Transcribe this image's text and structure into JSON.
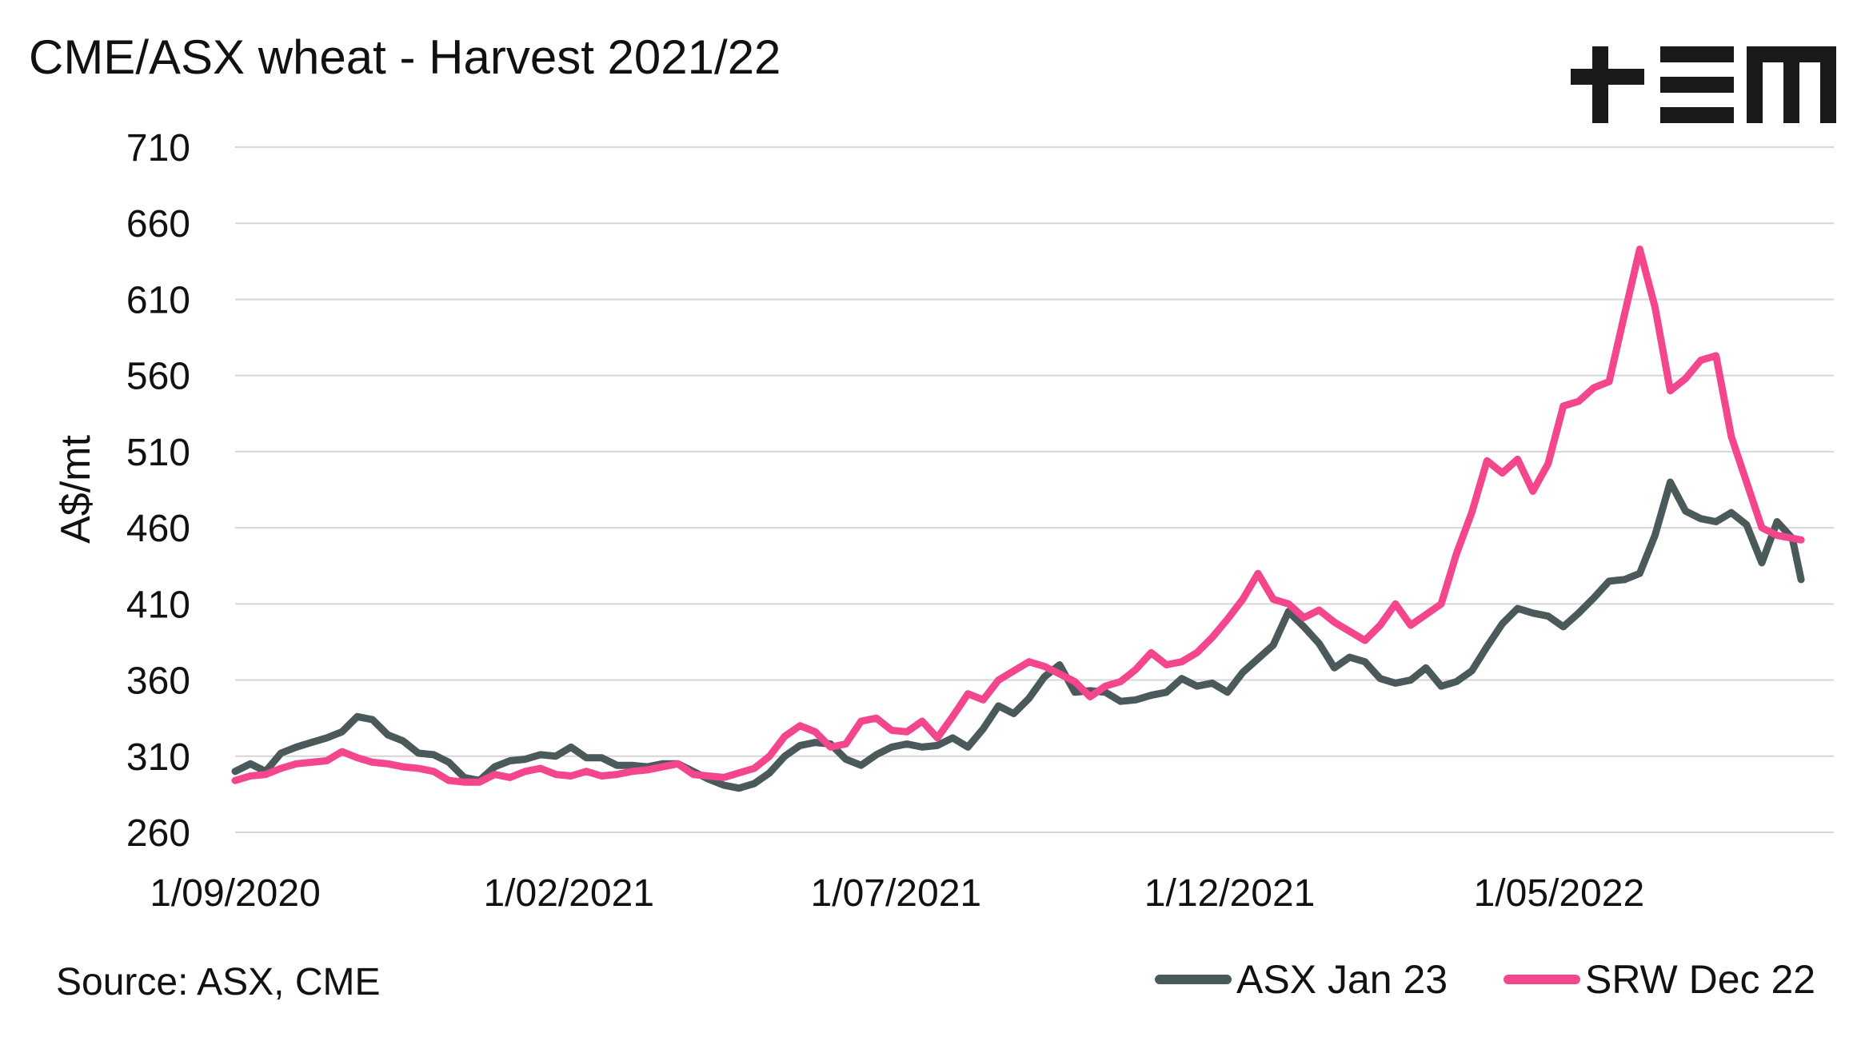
{
  "title": "CME/ASX wheat - Harvest 2021/22",
  "source": "Source: ASX, CME",
  "logo": {
    "name": "tem-logo",
    "color": "#1a1a1a"
  },
  "chart_data": {
    "type": "line",
    "title": "CME/ASX wheat - Harvest 2021/22",
    "ylabel": "A$/mt",
    "xlabel": "",
    "ylim": [
      260,
      710
    ],
    "yticks": [
      260,
      310,
      360,
      410,
      460,
      510,
      560,
      610,
      660,
      710
    ],
    "xticks": [
      "1/09/2020",
      "1/02/2021",
      "1/07/2021",
      "1/12/2021",
      "1/05/2022"
    ],
    "xrange": [
      "1/09/2020",
      "4/09/2022"
    ],
    "grid": "horizontal",
    "legend_position": "bottom-right",
    "series": [
      {
        "name": "ASX Jan 23",
        "color": "#4a5a5a",
        "points": [
          [
            "1/09/2020",
            300
          ],
          [
            "8/09/2020",
            305
          ],
          [
            "15/09/2020",
            300
          ],
          [
            "22/09/2020",
            312
          ],
          [
            "29/09/2020",
            316
          ],
          [
            "6/10/2020",
            319
          ],
          [
            "13/10/2020",
            322
          ],
          [
            "20/10/2020",
            326
          ],
          [
            "27/10/2020",
            336
          ],
          [
            "3/11/2020",
            334
          ],
          [
            "10/11/2020",
            324
          ],
          [
            "17/11/2020",
            320
          ],
          [
            "24/11/2020",
            312
          ],
          [
            "1/12/2020",
            311
          ],
          [
            "8/12/2020",
            306
          ],
          [
            "15/12/2020",
            296
          ],
          [
            "22/12/2020",
            294
          ],
          [
            "29/12/2020",
            303
          ],
          [
            "5/01/2021",
            307
          ],
          [
            "12/01/2021",
            308
          ],
          [
            "19/01/2021",
            311
          ],
          [
            "26/01/2021",
            310
          ],
          [
            "2/02/2021",
            316
          ],
          [
            "9/02/2021",
            309
          ],
          [
            "16/02/2021",
            309
          ],
          [
            "23/02/2021",
            304
          ],
          [
            "2/03/2021",
            304
          ],
          [
            "9/03/2021",
            303
          ],
          [
            "16/03/2021",
            305
          ],
          [
            "23/03/2021",
            305
          ],
          [
            "30/03/2021",
            300
          ],
          [
            "6/04/2021",
            295
          ],
          [
            "13/04/2021",
            291
          ],
          [
            "20/04/2021",
            289
          ],
          [
            "27/04/2021",
            292
          ],
          [
            "4/05/2021",
            299
          ],
          [
            "11/05/2021",
            310
          ],
          [
            "18/05/2021",
            317
          ],
          [
            "25/05/2021",
            319
          ],
          [
            "1/06/2021",
            318
          ],
          [
            "8/06/2021",
            308
          ],
          [
            "15/06/2021",
            304
          ],
          [
            "22/06/2021",
            311
          ],
          [
            "29/06/2021",
            316
          ],
          [
            "6/07/2021",
            318
          ],
          [
            "13/07/2021",
            316
          ],
          [
            "20/07/2021",
            317
          ],
          [
            "27/07/2021",
            322
          ],
          [
            "3/08/2021",
            316
          ],
          [
            "10/08/2021",
            328
          ],
          [
            "17/08/2021",
            343
          ],
          [
            "24/08/2021",
            338
          ],
          [
            "31/08/2021",
            348
          ],
          [
            "7/09/2021",
            362
          ],
          [
            "14/09/2021",
            370
          ],
          [
            "21/09/2021",
            352
          ],
          [
            "28/09/2021",
            353
          ],
          [
            "5/10/2021",
            352
          ],
          [
            "12/10/2021",
            346
          ],
          [
            "19/10/2021",
            347
          ],
          [
            "26/10/2021",
            350
          ],
          [
            "2/11/2021",
            352
          ],
          [
            "9/11/2021",
            361
          ],
          [
            "16/11/2021",
            356
          ],
          [
            "23/11/2021",
            358
          ],
          [
            "30/11/2021",
            352
          ],
          [
            "7/12/2021",
            365
          ],
          [
            "14/12/2021",
            374
          ],
          [
            "21/12/2021",
            383
          ],
          [
            "28/12/2021",
            405
          ],
          [
            "4/01/2022",
            395
          ],
          [
            "11/01/2022",
            384
          ],
          [
            "18/01/2022",
            368
          ],
          [
            "25/01/2022",
            375
          ],
          [
            "1/02/2022",
            372
          ],
          [
            "8/02/2022",
            361
          ],
          [
            "15/02/2022",
            358
          ],
          [
            "22/02/2022",
            360
          ],
          [
            "1/03/2022",
            368
          ],
          [
            "8/03/2022",
            356
          ],
          [
            "15/03/2022",
            359
          ],
          [
            "22/03/2022",
            366
          ],
          [
            "29/03/2022",
            382
          ],
          [
            "5/04/2022",
            397
          ],
          [
            "12/04/2022",
            407
          ],
          [
            "19/04/2022",
            404
          ],
          [
            "26/04/2022",
            402
          ],
          [
            "3/05/2022",
            395
          ],
          [
            "10/05/2022",
            404
          ],
          [
            "17/05/2022",
            414
          ],
          [
            "24/05/2022",
            425
          ],
          [
            "31/05/2022",
            426
          ],
          [
            "7/06/2022",
            430
          ],
          [
            "14/06/2022",
            455
          ],
          [
            "21/06/2022",
            490
          ],
          [
            "28/06/2022",
            471
          ],
          [
            "5/07/2022",
            466
          ],
          [
            "12/07/2022",
            464
          ],
          [
            "19/07/2022",
            470
          ],
          [
            "26/07/2022",
            462
          ],
          [
            "2/08/2022",
            437
          ],
          [
            "9/08/2022",
            464
          ],
          [
            "16/08/2022",
            453
          ],
          [
            "20/08/2022",
            426
          ]
        ]
      },
      {
        "name": "SRW Dec 22",
        "color": "#f4468c",
        "points": [
          [
            "1/09/2020",
            294
          ],
          [
            "8/09/2020",
            297
          ],
          [
            "15/09/2020",
            298
          ],
          [
            "22/09/2020",
            302
          ],
          [
            "29/09/2020",
            305
          ],
          [
            "6/10/2020",
            306
          ],
          [
            "13/10/2020",
            307
          ],
          [
            "20/10/2020",
            313
          ],
          [
            "27/10/2020",
            309
          ],
          [
            "3/11/2020",
            306
          ],
          [
            "10/11/2020",
            305
          ],
          [
            "17/11/2020",
            303
          ],
          [
            "24/11/2020",
            302
          ],
          [
            "1/12/2020",
            300
          ],
          [
            "8/12/2020",
            294
          ],
          [
            "15/12/2020",
            293
          ],
          [
            "22/12/2020",
            293
          ],
          [
            "29/12/2020",
            298
          ],
          [
            "5/01/2021",
            296
          ],
          [
            "12/01/2021",
            300
          ],
          [
            "19/01/2021",
            302
          ],
          [
            "26/01/2021",
            298
          ],
          [
            "2/02/2021",
            297
          ],
          [
            "9/02/2021",
            300
          ],
          [
            "16/02/2021",
            297
          ],
          [
            "23/02/2021",
            298
          ],
          [
            "2/03/2021",
            300
          ],
          [
            "9/03/2021",
            301
          ],
          [
            "16/03/2021",
            303
          ],
          [
            "23/03/2021",
            305
          ],
          [
            "30/03/2021",
            298
          ],
          [
            "6/04/2021",
            297
          ],
          [
            "13/04/2021",
            296
          ],
          [
            "20/04/2021",
            299
          ],
          [
            "27/04/2021",
            302
          ],
          [
            "4/05/2021",
            310
          ],
          [
            "11/05/2021",
            323
          ],
          [
            "18/05/2021",
            330
          ],
          [
            "25/05/2021",
            326
          ],
          [
            "1/06/2021",
            316
          ],
          [
            "8/06/2021",
            318
          ],
          [
            "15/06/2021",
            333
          ],
          [
            "22/06/2021",
            335
          ],
          [
            "29/06/2021",
            327
          ],
          [
            "6/07/2021",
            326
          ],
          [
            "13/07/2021",
            333
          ],
          [
            "20/07/2021",
            322
          ],
          [
            "27/07/2021",
            336
          ],
          [
            "3/08/2021",
            351
          ],
          [
            "10/08/2021",
            347
          ],
          [
            "17/08/2021",
            360
          ],
          [
            "24/08/2021",
            366
          ],
          [
            "31/08/2021",
            372
          ],
          [
            "7/09/2021",
            369
          ],
          [
            "14/09/2021",
            364
          ],
          [
            "21/09/2021",
            359
          ],
          [
            "28/09/2021",
            349
          ],
          [
            "5/10/2021",
            356
          ],
          [
            "12/10/2021",
            359
          ],
          [
            "19/10/2021",
            367
          ],
          [
            "26/10/2021",
            378
          ],
          [
            "2/11/2021",
            370
          ],
          [
            "9/11/2021",
            372
          ],
          [
            "16/11/2021",
            378
          ],
          [
            "23/11/2021",
            388
          ],
          [
            "30/11/2021",
            400
          ],
          [
            "7/12/2021",
            413
          ],
          [
            "14/12/2021",
            430
          ],
          [
            "21/12/2021",
            413
          ],
          [
            "28/12/2021",
            410
          ],
          [
            "4/01/2022",
            401
          ],
          [
            "11/01/2022",
            406
          ],
          [
            "18/01/2022",
            398
          ],
          [
            "25/01/2022",
            392
          ],
          [
            "1/02/2022",
            386
          ],
          [
            "8/02/2022",
            396
          ],
          [
            "15/02/2022",
            410
          ],
          [
            "22/02/2022",
            396
          ],
          [
            "1/03/2022",
            403
          ],
          [
            "8/03/2022",
            410
          ],
          [
            "15/03/2022",
            443
          ],
          [
            "22/03/2022",
            470
          ],
          [
            "29/03/2022",
            504
          ],
          [
            "5/04/2022",
            496
          ],
          [
            "12/04/2022",
            505
          ],
          [
            "19/04/2022",
            484
          ],
          [
            "26/04/2022",
            502
          ],
          [
            "3/05/2022",
            540
          ],
          [
            "10/05/2022",
            543
          ],
          [
            "17/05/2022",
            552
          ],
          [
            "24/05/2022",
            556
          ],
          [
            "31/05/2022",
            600
          ],
          [
            "7/06/2022",
            643
          ],
          [
            "14/06/2022",
            605
          ],
          [
            "21/06/2022",
            550
          ],
          [
            "28/06/2022",
            558
          ],
          [
            "5/07/2022",
            570
          ],
          [
            "12/07/2022",
            573
          ],
          [
            "19/07/2022",
            520
          ],
          [
            "26/07/2022",
            490
          ],
          [
            "2/08/2022",
            460
          ],
          [
            "9/08/2022",
            455
          ],
          [
            "20/08/2022",
            452
          ]
        ]
      }
    ]
  }
}
